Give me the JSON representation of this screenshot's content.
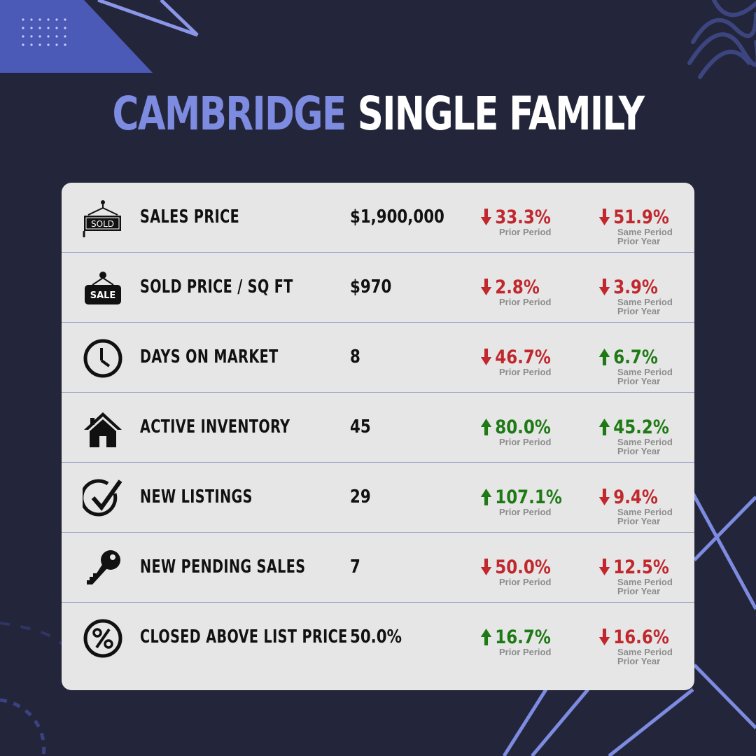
{
  "title": {
    "city": "CAMBRIDGE",
    "type": "SINGLE FAMILY"
  },
  "rows": [
    {
      "icon": "sold-sign-icon",
      "label": "SALES PRICE",
      "value": "$1,900,000",
      "prior": {
        "dir": "down",
        "pct": "33.3%",
        "note": "Prior Period"
      },
      "year": {
        "dir": "down",
        "pct": "51.9%",
        "note1": "Same Period",
        "note2": "Prior Year"
      }
    },
    {
      "icon": "sale-sign-icon",
      "label": "SOLD PRICE / SQ FT",
      "value": "$970",
      "prior": {
        "dir": "down",
        "pct": "2.8%",
        "note": "Prior Period"
      },
      "year": {
        "dir": "down",
        "pct": "3.9%",
        "note1": "Same Period",
        "note2": "Prior Year"
      }
    },
    {
      "icon": "clock-icon",
      "label": "DAYS ON MARKET",
      "value": "8",
      "prior": {
        "dir": "down",
        "pct": "46.7%",
        "note": "Prior Period"
      },
      "year": {
        "dir": "up",
        "pct": "6.7%",
        "note1": "Same Period",
        "note2": "Prior Year"
      }
    },
    {
      "icon": "house-icon",
      "label": "ACTIVE INVENTORY",
      "value": "45",
      "prior": {
        "dir": "up",
        "pct": "80.0%",
        "note": "Prior Period"
      },
      "year": {
        "dir": "up",
        "pct": "45.2%",
        "note1": "Same Period",
        "note2": "Prior Year"
      }
    },
    {
      "icon": "checkmark-circle-icon",
      "label": "NEW LISTINGS",
      "value": "29",
      "prior": {
        "dir": "up",
        "pct": "107.1%",
        "note": "Prior Period"
      },
      "year": {
        "dir": "down",
        "pct": "9.4%",
        "note1": "Same Period",
        "note2": "Prior Year"
      }
    },
    {
      "icon": "key-icon",
      "label": "NEW PENDING SALES",
      "value": "7",
      "prior": {
        "dir": "down",
        "pct": "50.0%",
        "note": "Prior Period"
      },
      "year": {
        "dir": "down",
        "pct": "12.5%",
        "note1": "Same Period",
        "note2": "Prior Year"
      }
    },
    {
      "icon": "percent-circle-icon",
      "label": "CLOSED ABOVE LIST PRICE",
      "value": "50.0%",
      "prior": {
        "dir": "up",
        "pct": "16.7%",
        "note": "Prior Period"
      },
      "year": {
        "dir": "down",
        "pct": "16.6%",
        "note1": "Same Period",
        "note2": "Prior Year"
      }
    }
  ],
  "icon_glyphs": {
    "sold": "SOLD",
    "sale": "SALE"
  },
  "colors": {
    "background": "#23263a",
    "accent": "#7d8be0",
    "card": "#e6e6e6",
    "down": "#c0282d",
    "up": "#1e7a14"
  }
}
